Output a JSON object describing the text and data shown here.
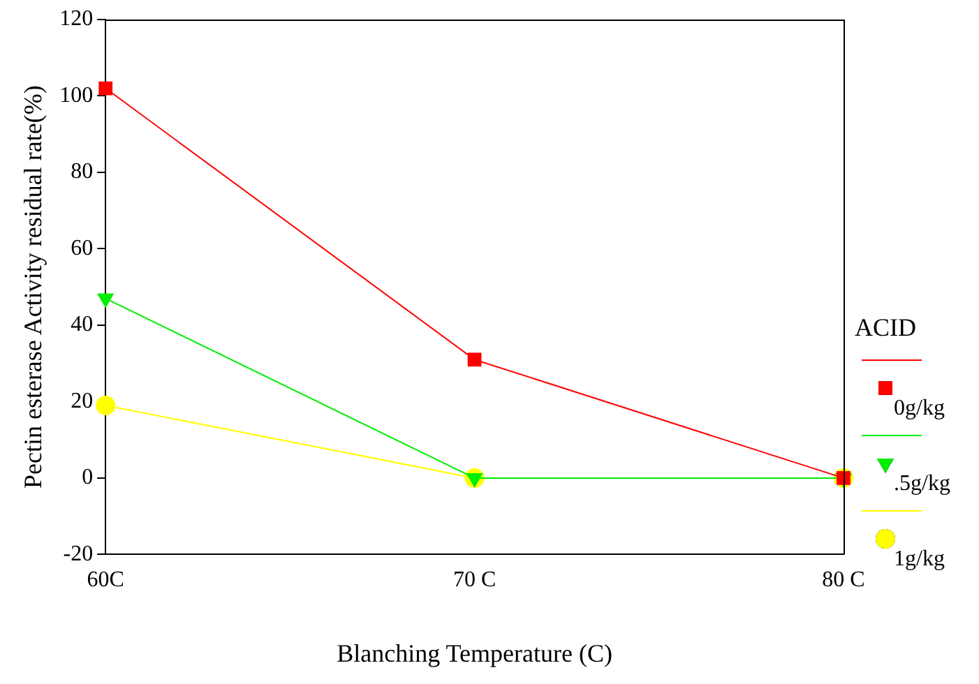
{
  "chart_data": {
    "type": "line",
    "xlabel": "Blanching Temperature (C)",
    "ylabel": "Pectin esterase Activity residual rate(%)",
    "legend_title": "ACID",
    "legend": "right",
    "categories": [
      "60C",
      "70 C",
      "80 C"
    ],
    "ylim": [
      -20,
      120
    ],
    "yticks": [
      -20,
      0,
      20,
      40,
      60,
      80,
      100,
      120
    ],
    "grid": false,
    "series": [
      {
        "name": "0g/kg",
        "color": "#ff0000",
        "marker": "square",
        "values": [
          102,
          31,
          0
        ]
      },
      {
        "name": ".5g/kg",
        "color": "#00ee00",
        "marker": "triangle",
        "values": [
          47,
          0,
          0
        ]
      },
      {
        "name": "1g/kg",
        "color": "#ffff00",
        "marker": "circle",
        "values": [
          19,
          0,
          0
        ]
      }
    ]
  }
}
